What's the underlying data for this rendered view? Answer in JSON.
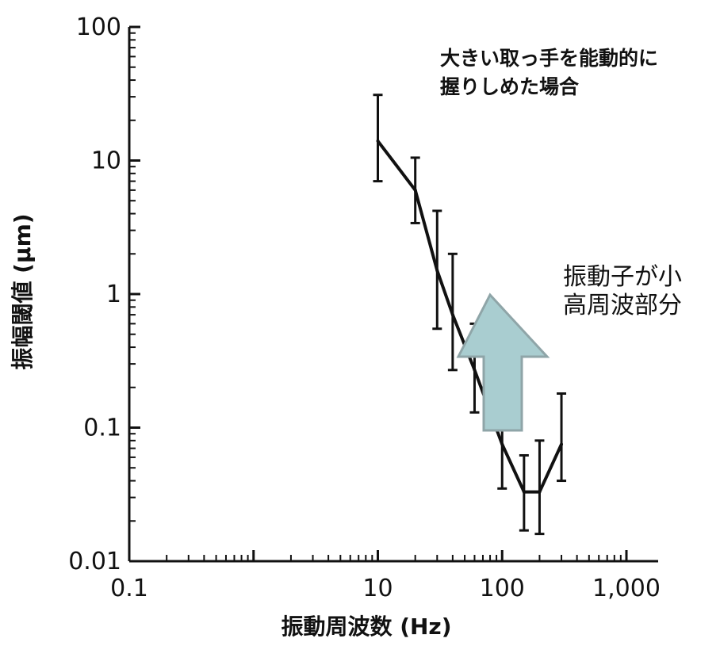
{
  "chart_data": {
    "type": "line",
    "x_scale": "log",
    "y_scale": "log",
    "xlim": [
      0.1,
      1000
    ],
    "ylim": [
      0.01,
      100
    ],
    "xlabel": "振動周波数 (Hz)",
    "ylabel": "振幅閾値 (μm)",
    "x_tick_labels": [
      "0.1",
      "10",
      "100",
      "1,000"
    ],
    "x_tick_values": [
      0.1,
      10,
      100,
      1000
    ],
    "y_tick_labels": [
      "0.01",
      "0.1",
      "1",
      "10",
      "100"
    ],
    "y_tick_values": [
      0.01,
      0.1,
      1,
      10,
      100
    ],
    "series": [
      {
        "x": [
          10,
          20,
          30,
          40,
          60,
          100,
          150,
          200,
          300
        ],
        "y": [
          14,
          6,
          1.5,
          0.7,
          0.27,
          0.075,
          0.033,
          0.033,
          0.075
        ],
        "err_low": [
          7,
          3.4,
          0.55,
          0.27,
          0.13,
          0.035,
          0.017,
          0.016,
          0.04
        ],
        "err_high": [
          31,
          10.5,
          4.2,
          2.0,
          0.6,
          0.17,
          0.062,
          0.08,
          0.18
        ]
      }
    ],
    "grid": false
  },
  "annotations": {
    "note_line1": "大きい取っ手を能動的に",
    "note_line2": "握りしめた場合",
    "callout_line1": "振動子が小",
    "callout_line2": "高周波部分"
  },
  "colors": {
    "line": "#111111",
    "arrow_fill": "#a9cdd0",
    "arrow_stroke": "#8fa5a8"
  }
}
